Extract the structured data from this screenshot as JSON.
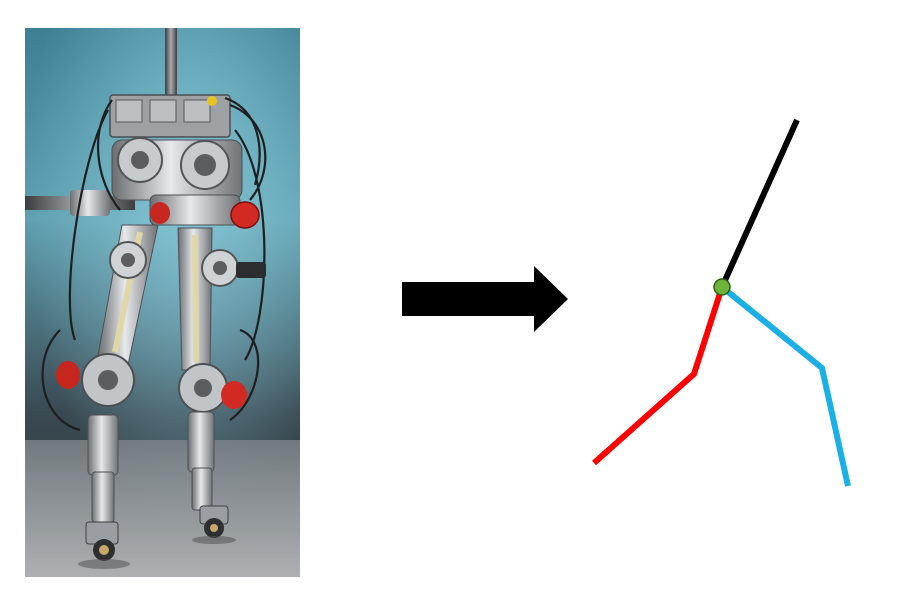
{
  "photo": {
    "subject": "bipedal-robot-legs",
    "background_color_top": "#5f9fb0",
    "background_color_bottom": "#2a3034",
    "floor_color": "#9a9ea2"
  },
  "arrow": {
    "direction": "right",
    "color": "#000000"
  },
  "stick_model": {
    "torso_color": "#000000",
    "left_leg_color": "#ff0000",
    "right_leg_color": "#1ab0e6",
    "hip_joint_color": "#6fb33a",
    "hip_joint_outline": "#2e5e12"
  }
}
